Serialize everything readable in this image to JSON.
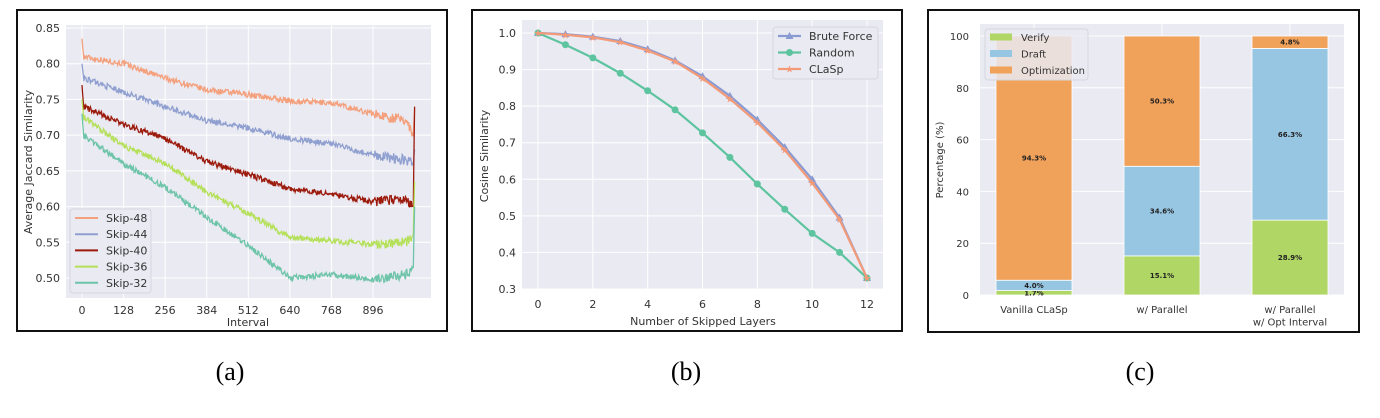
{
  "chart_data": [
    {
      "type": "line",
      "caption": "(a)",
      "xlabel": "Interval",
      "ylabel": "Average Jaccard Similarity",
      "xlim": [
        -40,
        1060
      ],
      "ylim": [
        0.48,
        0.855
      ],
      "xticks": [
        0,
        128,
        256,
        384,
        512,
        640,
        768,
        896
      ],
      "yticks": [
        0.5,
        0.55,
        0.6,
        0.65,
        0.7,
        0.75,
        0.8,
        0.85
      ],
      "grid": true,
      "legend_position": "bottom-left",
      "series": [
        {
          "name": "Skip-48",
          "color": "#f4a07c",
          "x": [
            0,
            5,
            128,
            256,
            384,
            512,
            640,
            768,
            896,
            1000,
            1020,
            1024
          ],
          "y": [
            0.835,
            0.81,
            0.8,
            0.78,
            0.763,
            0.757,
            0.748,
            0.745,
            0.73,
            0.72,
            0.7,
            0.735
          ]
        },
        {
          "name": "Skip-44",
          "color": "#8f9fcf",
          "x": [
            0,
            5,
            128,
            256,
            384,
            512,
            640,
            768,
            896,
            1000,
            1020,
            1024
          ],
          "y": [
            0.8,
            0.78,
            0.76,
            0.74,
            0.72,
            0.71,
            0.695,
            0.688,
            0.672,
            0.665,
            0.66,
            0.68
          ]
        },
        {
          "name": "Skip-40",
          "color": "#9b1a0c",
          "x": [
            0,
            5,
            128,
            256,
            384,
            512,
            640,
            768,
            896,
            1000,
            1020,
            1024
          ],
          "y": [
            0.77,
            0.74,
            0.715,
            0.695,
            0.663,
            0.645,
            0.625,
            0.617,
            0.607,
            0.61,
            0.6,
            0.74
          ]
        },
        {
          "name": "Skip-36",
          "color": "#b5e05a",
          "x": [
            0,
            5,
            128,
            256,
            384,
            512,
            640,
            768,
            896,
            1000,
            1020,
            1024
          ],
          "y": [
            0.75,
            0.725,
            0.685,
            0.66,
            0.62,
            0.59,
            0.557,
            0.552,
            0.547,
            0.55,
            0.56,
            0.635
          ]
        },
        {
          "name": "Skip-32",
          "color": "#6dc4a8",
          "x": [
            0,
            5,
            128,
            256,
            384,
            512,
            640,
            768,
            896,
            1000,
            1020,
            1024
          ],
          "y": [
            0.73,
            0.7,
            0.66,
            0.627,
            0.585,
            0.545,
            0.5,
            0.505,
            0.498,
            0.505,
            0.515,
            0.6
          ]
        }
      ]
    },
    {
      "type": "line",
      "caption": "(b)",
      "xlabel": "Number of Skipped Layers",
      "ylabel": "Cosine Similarity",
      "xlim": [
        -0.4,
        12.4
      ],
      "ylim": [
        0.3,
        1.03
      ],
      "xticks": [
        0,
        2,
        4,
        6,
        8,
        10,
        12
      ],
      "yticks": [
        0.3,
        0.4,
        0.5,
        0.6,
        0.7,
        0.8,
        0.9,
        1.0
      ],
      "grid": true,
      "legend_position": "top-right",
      "x": [
        0,
        1,
        2,
        3,
        4,
        5,
        6,
        7,
        8,
        9,
        10,
        11,
        12
      ],
      "series": [
        {
          "name": "Brute Force",
          "color": "#8a9ad2",
          "marker": "triangle",
          "values": [
            1.0,
            0.997,
            0.99,
            0.978,
            0.956,
            0.925,
            0.882,
            0.828,
            0.763,
            0.688,
            0.6,
            0.495,
            0.33
          ]
        },
        {
          "name": "Random",
          "color": "#5ec4a0",
          "marker": "circle",
          "values": [
            1.0,
            0.968,
            0.932,
            0.89,
            0.842,
            0.79,
            0.727,
            0.66,
            0.587,
            0.518,
            0.452,
            0.4,
            0.33
          ]
        },
        {
          "name": "CLaSp",
          "color": "#f39a78",
          "marker": "star",
          "values": [
            1.0,
            0.995,
            0.988,
            0.975,
            0.952,
            0.922,
            0.876,
            0.82,
            0.755,
            0.68,
            0.59,
            0.49,
            0.33
          ]
        }
      ]
    },
    {
      "type": "bar",
      "stacked": true,
      "caption": "(c)",
      "xlabel": "",
      "ylabel": "Percentage (%)",
      "ylim": [
        0,
        105
      ],
      "yticks": [
        0,
        20,
        40,
        60,
        80,
        100
      ],
      "grid": true,
      "legend_position": "top-left",
      "categories": [
        "Vanilla CLaSp",
        "w/ Parallel",
        "w/ Parallel\nw/ Opt Interval"
      ],
      "series": [
        {
          "name": "Verify",
          "color": "#b0d766",
          "values": [
            1.7,
            15.1,
            28.9
          ],
          "labels": [
            "1.7%",
            "15.1%",
            "28.9%"
          ]
        },
        {
          "name": "Draft",
          "color": "#97c6e3",
          "values": [
            4.0,
            34.6,
            66.3
          ],
          "labels": [
            "4.0%",
            "34.6%",
            "66.3%"
          ]
        },
        {
          "name": "Optimization",
          "color": "#f0a15a",
          "values": [
            94.3,
            50.3,
            4.8
          ],
          "labels": [
            "94.3%",
            "50.3%",
            "4.8%"
          ]
        }
      ]
    }
  ]
}
